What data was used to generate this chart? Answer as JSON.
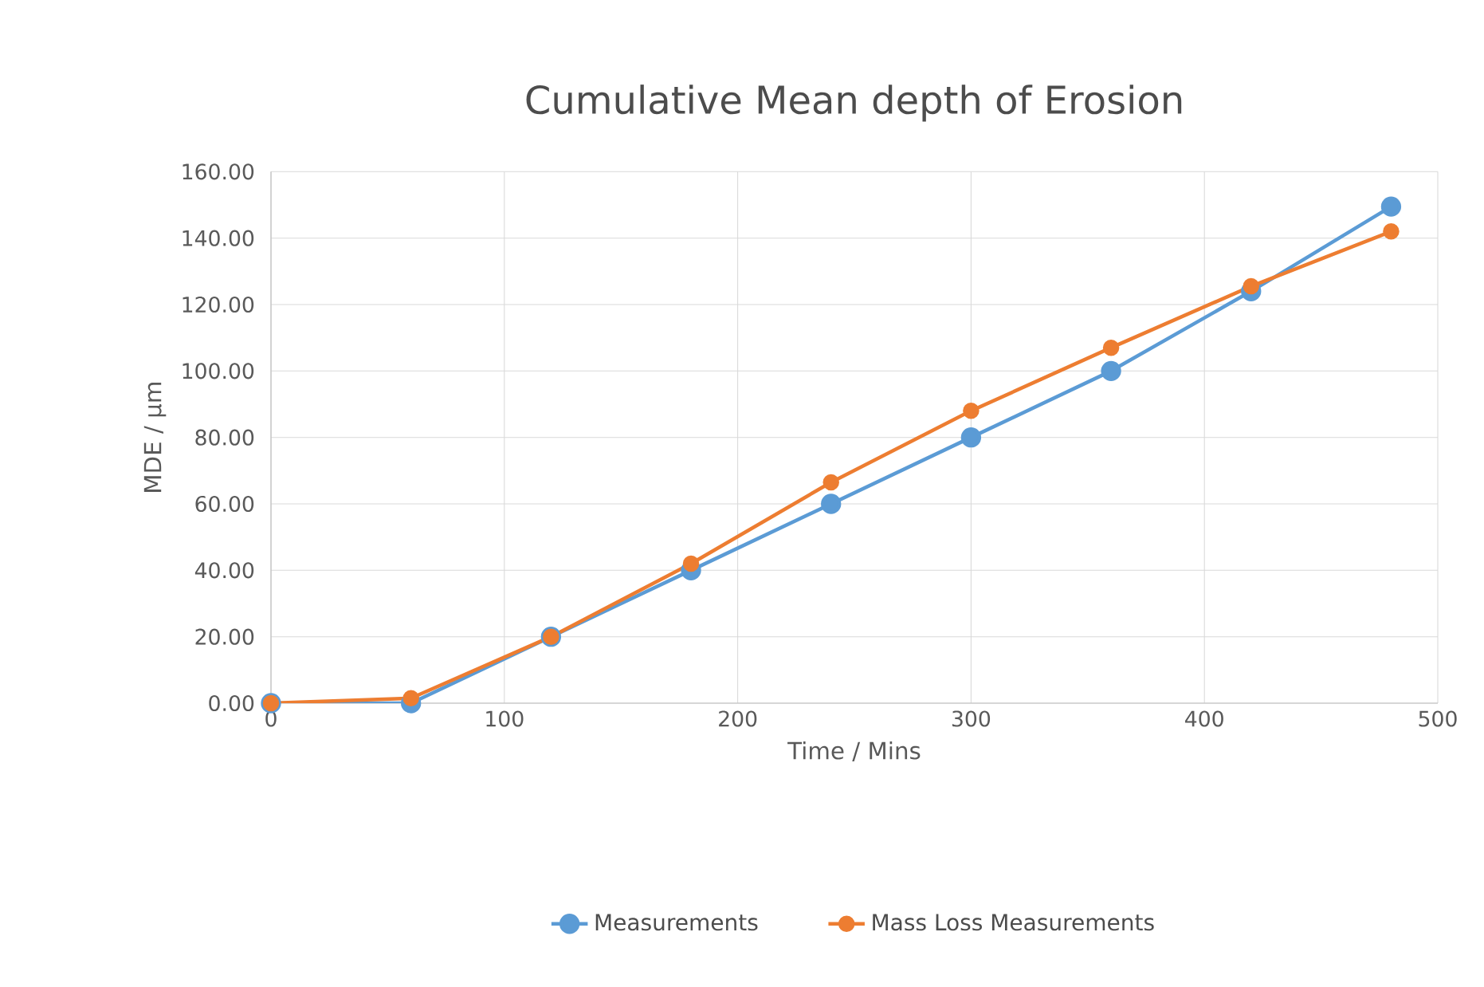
{
  "chart_data": {
    "type": "line",
    "title": "Cumulative Mean depth of Erosion",
    "xlabel": "Time / Mins",
    "ylabel": "MDE / µm",
    "x": [
      0,
      60,
      120,
      180,
      240,
      300,
      360,
      420,
      480
    ],
    "series": [
      {
        "name": "Measurements",
        "color": "#5b9bd5",
        "values": [
          0,
          0,
          20,
          40,
          60,
          80,
          100,
          124,
          149.5
        ]
      },
      {
        "name": "Mass Loss Measurements",
        "color": "#ed7d31",
        "values": [
          0,
          1.5,
          20,
          42,
          66.5,
          88,
          107,
          125.5,
          142
        ]
      }
    ],
    "xlim": [
      0,
      500
    ],
    "xticks": [
      0,
      100,
      200,
      300,
      400,
      500
    ],
    "ylim": [
      0,
      160
    ],
    "yticks": [
      {
        "value": 0,
        "label": "0.00"
      },
      {
        "value": 20,
        "label": "20.00"
      },
      {
        "value": 40,
        "label": "40.00"
      },
      {
        "value": 60,
        "label": "60.00"
      },
      {
        "value": 80,
        "label": "80.00"
      },
      {
        "value": 100,
        "label": "100.00"
      },
      {
        "value": 120,
        "label": "120.00"
      },
      {
        "value": 140,
        "label": "140.00"
      },
      {
        "value": 160,
        "label": "160.00"
      }
    ],
    "grid": true,
    "legend": "bottom",
    "marker": "circle",
    "line_style": "solid"
  }
}
